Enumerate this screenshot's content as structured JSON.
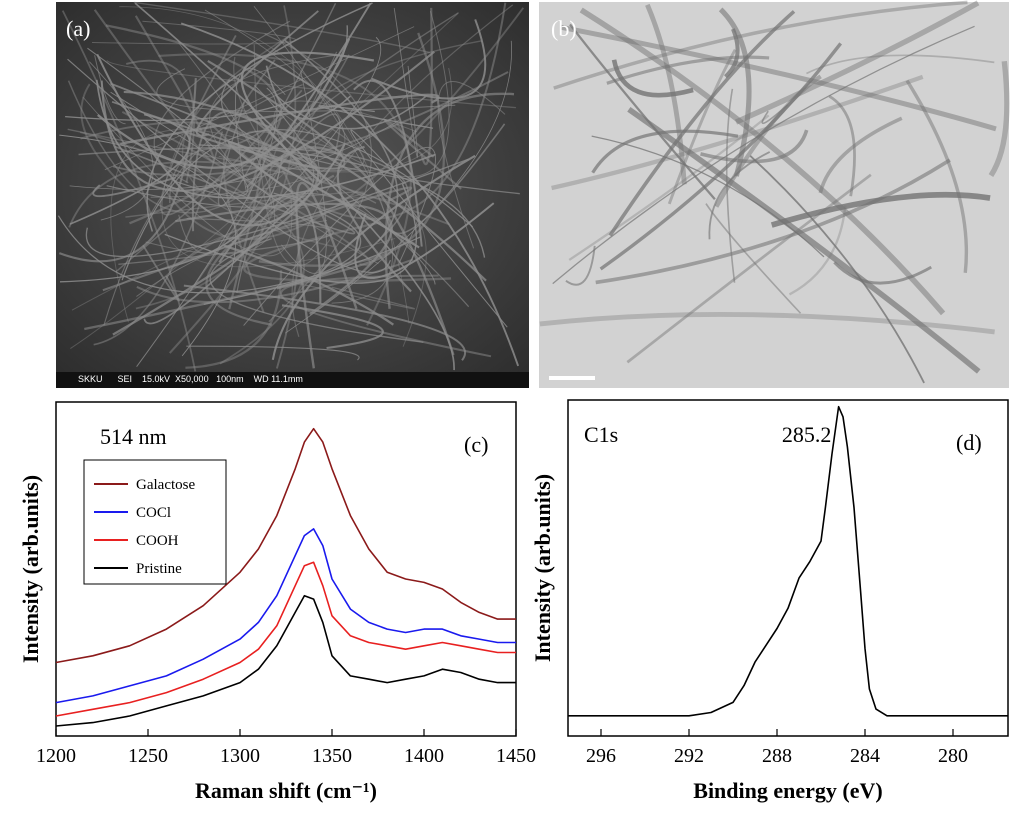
{
  "panels": {
    "a": {
      "label": "(a)",
      "scalebar_text": "SKKU      SEI    15.0kV  X50,000   100nm    WD 11.1mm"
    },
    "b": {
      "label": "(b)"
    }
  },
  "chart_data": [
    {
      "type": "line",
      "panel_label": "(c)",
      "annotation": "514 nm",
      "xlabel": "Raman shift (cm⁻¹)",
      "ylabel": "Intensity (arb.units)",
      "xlim": [
        1200,
        1450
      ],
      "xticks": [
        "1200",
        "1250",
        "1300",
        "1350",
        "1400",
        "1450"
      ],
      "legend_position": "top-left",
      "x": [
        1200,
        1220,
        1240,
        1260,
        1280,
        1300,
        1310,
        1320,
        1330,
        1335,
        1340,
        1345,
        1350,
        1360,
        1370,
        1380,
        1390,
        1400,
        1410,
        1420,
        1430,
        1440,
        1450
      ],
      "series": [
        {
          "name": "Galactose",
          "color": "#8b1a1a",
          "values": [
            0.22,
            0.24,
            0.27,
            0.32,
            0.39,
            0.49,
            0.56,
            0.66,
            0.8,
            0.88,
            0.92,
            0.88,
            0.8,
            0.66,
            0.56,
            0.49,
            0.47,
            0.46,
            0.44,
            0.4,
            0.37,
            0.35,
            0.35
          ]
        },
        {
          "name": "COCl",
          "color": "#1a1aee",
          "values": [
            0.1,
            0.12,
            0.15,
            0.18,
            0.23,
            0.29,
            0.34,
            0.42,
            0.54,
            0.6,
            0.62,
            0.57,
            0.47,
            0.38,
            0.34,
            0.32,
            0.31,
            0.32,
            0.32,
            0.3,
            0.29,
            0.28,
            0.28
          ]
        },
        {
          "name": "COOH",
          "color": "#e82020",
          "values": [
            0.06,
            0.08,
            0.1,
            0.13,
            0.17,
            0.22,
            0.26,
            0.33,
            0.45,
            0.51,
            0.52,
            0.45,
            0.36,
            0.3,
            0.28,
            0.27,
            0.26,
            0.27,
            0.28,
            0.27,
            0.26,
            0.25,
            0.25
          ]
        },
        {
          "name": "Pristine",
          "color": "#000000",
          "values": [
            0.03,
            0.04,
            0.06,
            0.09,
            0.12,
            0.16,
            0.2,
            0.27,
            0.37,
            0.42,
            0.41,
            0.34,
            0.24,
            0.18,
            0.17,
            0.16,
            0.17,
            0.18,
            0.2,
            0.19,
            0.17,
            0.16,
            0.16
          ]
        }
      ]
    },
    {
      "type": "line",
      "panel_label": "(d)",
      "annotation": "C1s",
      "peak_label": "285.2",
      "xlabel": "Binding energy (eV)",
      "ylabel": "Intensity (arb.units)",
      "xlim": [
        297.5,
        277.5
      ],
      "xticks": [
        "296",
        "292",
        "288",
        "284",
        "280"
      ],
      "x": [
        297.5,
        296,
        294,
        292,
        291,
        290,
        289.5,
        289,
        288.5,
        288,
        287.5,
        287,
        286.5,
        286,
        285.8,
        285.5,
        285.2,
        285,
        284.8,
        284.5,
        284.2,
        284,
        283.8,
        283.5,
        283,
        282,
        280,
        278,
        277.5
      ],
      "series": [
        {
          "name": "",
          "color": "#000000",
          "values": [
            0.06,
            0.06,
            0.06,
            0.06,
            0.07,
            0.1,
            0.15,
            0.22,
            0.27,
            0.32,
            0.38,
            0.47,
            0.52,
            0.58,
            0.68,
            0.84,
            0.98,
            0.95,
            0.86,
            0.68,
            0.43,
            0.26,
            0.14,
            0.08,
            0.06,
            0.06,
            0.06,
            0.06,
            0.06
          ]
        }
      ]
    }
  ]
}
